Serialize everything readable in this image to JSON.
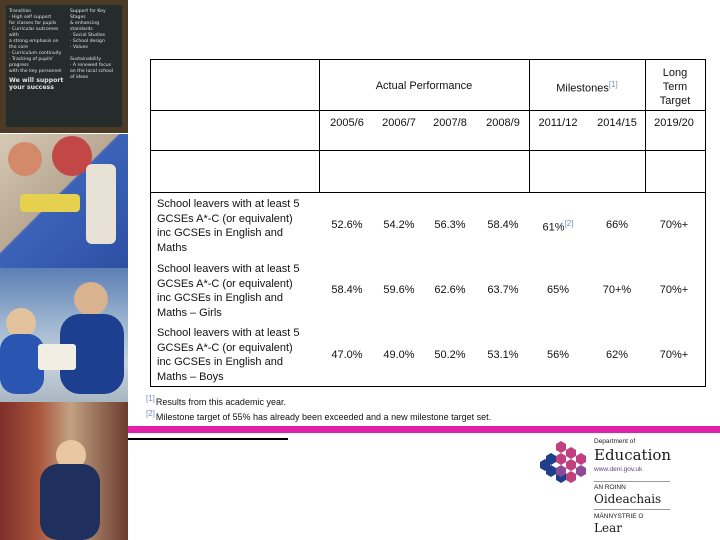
{
  "board": {
    "col1": [
      "Transition",
      "· High self support",
      "  for classes for pupils",
      "· Curricular outcomes with",
      "  a strong emphasis on",
      "  the core",
      "· Curriculum continuity",
      "· Tracking of pupils' progress",
      "  with the key personnel"
    ],
    "col1_big": "We will support your success",
    "col2": [
      "Support for Key Stages",
      "& enhancing standards",
      "· Social Studies",
      "· School design",
      "· Values",
      "",
      "Sustainability",
      "· A renewed focus",
      "  on the local school",
      "  of ideas"
    ],
    "colors": {
      "frame": "#4a3a26",
      "board": "#262b2c"
    }
  },
  "table": {
    "header_actual": "Actual Performance",
    "header_milestones": "Milestones",
    "milestones_ref": "[1]",
    "header_long_term": [
      "Long",
      "Term",
      "Target"
    ],
    "years": [
      "2005/6",
      "2006/7",
      "2007/8",
      "2008/9",
      "2011/12",
      "2014/15",
      "2019/20"
    ],
    "rows": [
      {
        "label": [
          "School leavers with at least 5",
          "GCSEs A*-C (or equivalent)",
          "inc GCSEs in English and",
          "Maths"
        ],
        "values": [
          "52.6%",
          "54.2%",
          "56.3%",
          "58.4%",
          "61%",
          "66%",
          "70%+"
        ],
        "ref": "[2]"
      },
      {
        "label": [
          "School leavers with at least 5",
          "GCSEs A*-C (or equivalent)",
          "inc GCSEs in English and",
          "Maths – Girls"
        ],
        "values": [
          "58.4%",
          "59.6%",
          "62.6%",
          "63.7%",
          "65%",
          "70+%",
          "70%+"
        ]
      },
      {
        "label": [
          "School leavers with at least 5",
          "GCSEs A*-C (or equivalent)",
          "inc GCSEs in English and",
          "Maths – Boys"
        ],
        "values": [
          "47.0%",
          "49.0%",
          "50.2%",
          "53.1%",
          "56%",
          "62%",
          "70%+"
        ]
      }
    ]
  },
  "footnotes": [
    {
      "ref": "[1]",
      "text": "Results from this academic year."
    },
    {
      "ref": "[2]",
      "text": "Milestone target of 55% has already been exceeded and a new milestone target set."
    }
  ],
  "logo": {
    "dept": "Department of",
    "name": "Education",
    "url": "www.deni.gov.uk",
    "irish_small": "AN ROINN",
    "irish": "Oideachais",
    "ulster_small": "MÄNNYSTRIE O",
    "ulster": "Lear"
  },
  "colors": {
    "accent_bar": "#e020a8",
    "ref_link": "#7b8fb8"
  }
}
